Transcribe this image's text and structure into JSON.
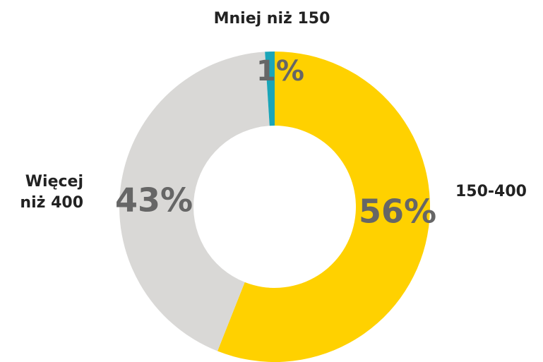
{
  "chart_data": {
    "type": "pie",
    "categories": [
      "150-400",
      "Więcej niż 400",
      "Mniej niż 150"
    ],
    "values": [
      56,
      43,
      1
    ],
    "value_labels": [
      "56%",
      "43%",
      "1%"
    ],
    "colors": [
      "#ffd100",
      "#d9d8d6",
      "#1ba5b8"
    ]
  }
}
